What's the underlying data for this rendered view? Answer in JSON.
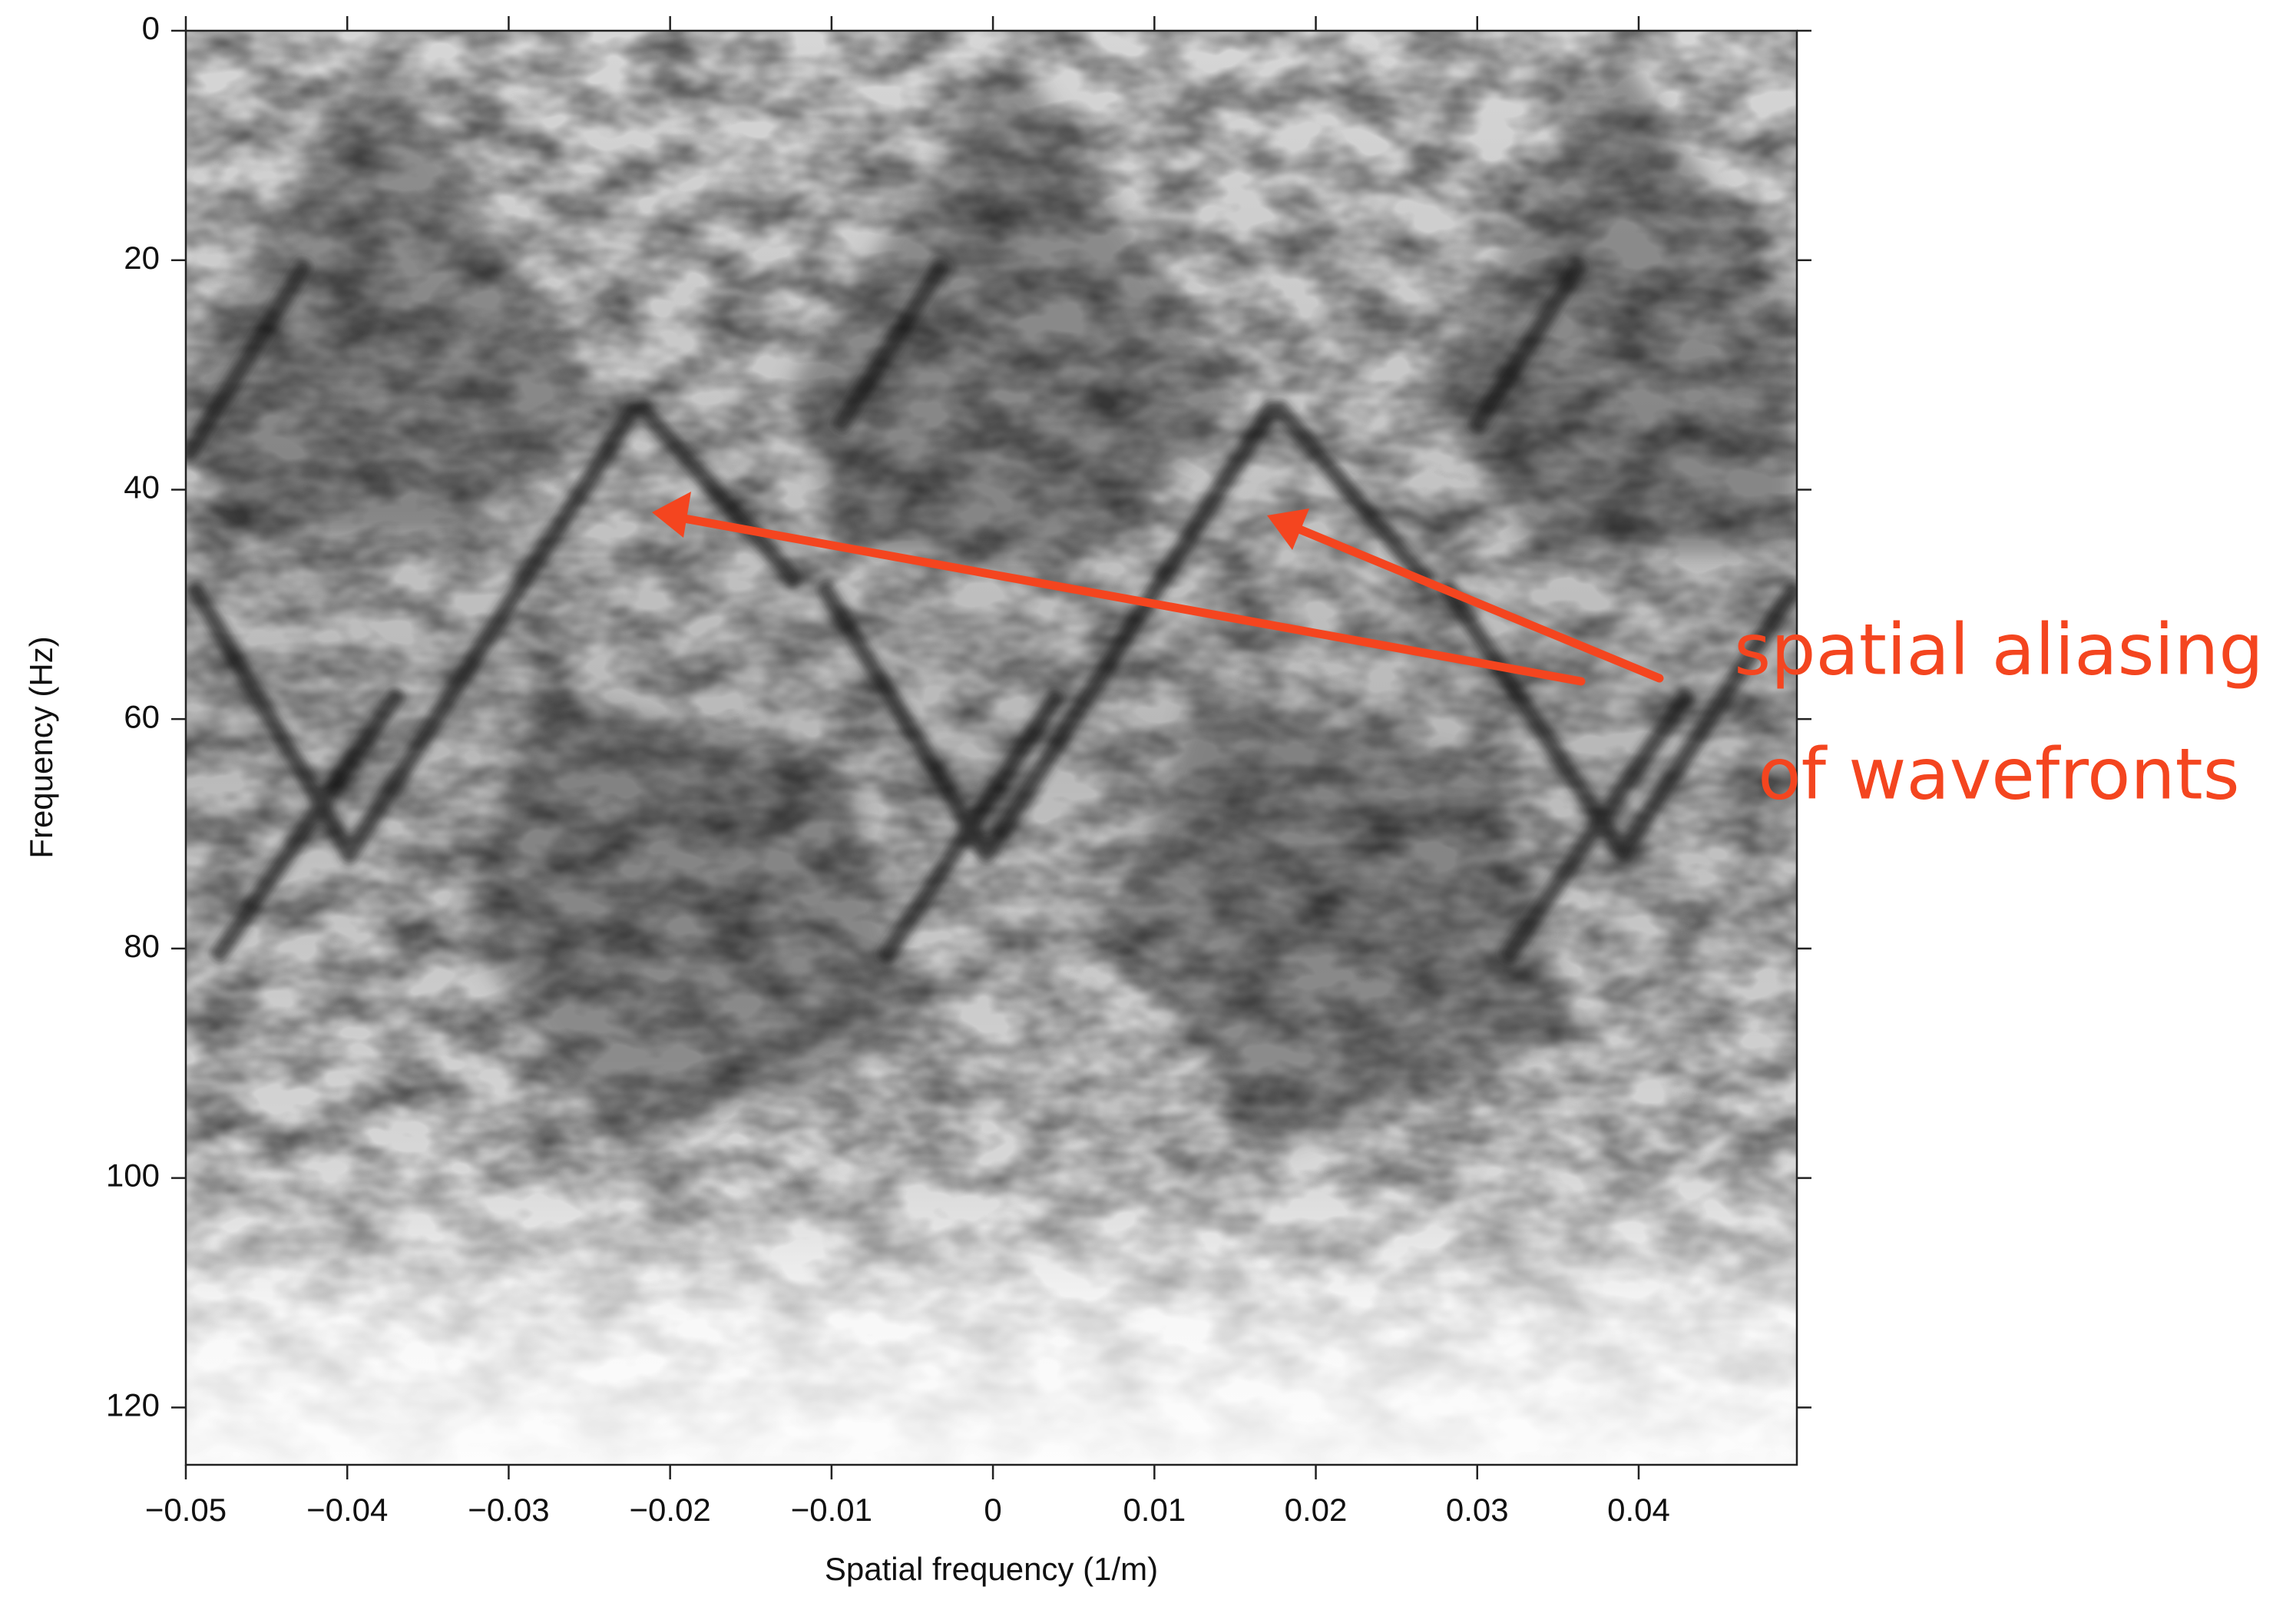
{
  "chart_data": {
    "type": "image",
    "xlabel": "Spatial frequency (1/m)",
    "ylabel": "Frequency (Hz)",
    "xlim": [
      -0.05,
      0.0498
    ],
    "ylim": [
      0,
      125
    ],
    "y_inverted": true,
    "xticks": [
      {
        "value": -0.05,
        "label": "−0.05"
      },
      {
        "value": -0.04,
        "label": "−0.04"
      },
      {
        "value": -0.03,
        "label": "−0.03"
      },
      {
        "value": -0.02,
        "label": "−0.02"
      },
      {
        "value": -0.01,
        "label": "−0.01"
      },
      0,
      0.01,
      0.02,
      0.03,
      0.04
    ],
    "yticks": [
      0,
      20,
      40,
      60,
      80,
      100,
      120
    ],
    "annotations": [
      "spatial aliasing",
      "of wavefronts"
    ],
    "annotation_color": "#f4451f"
  }
}
